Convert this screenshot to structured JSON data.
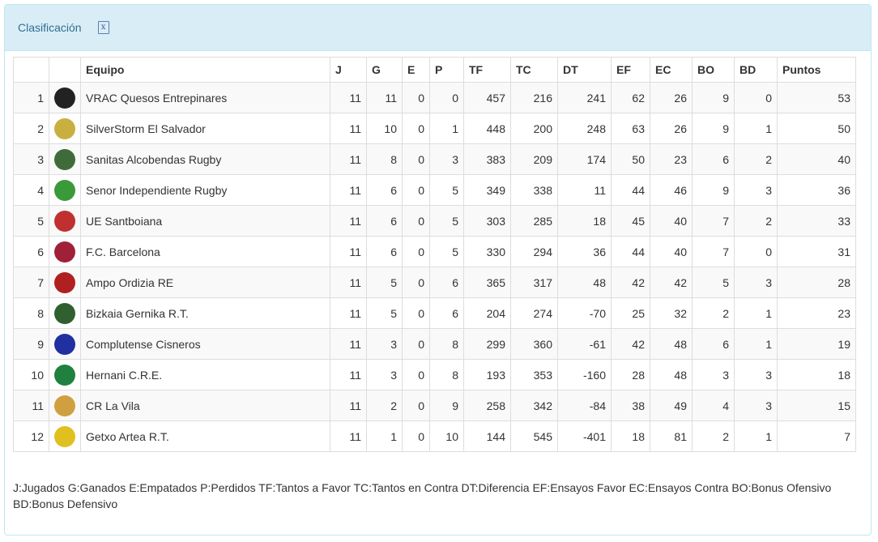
{
  "panel": {
    "title": "Clasificación",
    "export_icon": "excel-file-icon"
  },
  "columns": [
    "",
    "",
    "Equipo",
    "J",
    "G",
    "E",
    "P",
    "TF",
    "TC",
    "DT",
    "EF",
    "EC",
    "BO",
    "BD",
    "Puntos"
  ],
  "rows": [
    {
      "pos": "1",
      "team": "VRAC Quesos Entrepinares",
      "logo_color": "#222222",
      "vals": [
        "11",
        "11",
        "0",
        "0",
        "457",
        "216",
        "241",
        "62",
        "26",
        "9",
        "0",
        "53"
      ]
    },
    {
      "pos": "2",
      "team": "SilverStorm El Salvador",
      "logo_color": "#c8b040",
      "vals": [
        "11",
        "10",
        "0",
        "1",
        "448",
        "200",
        "248",
        "63",
        "26",
        "9",
        "1",
        "50"
      ]
    },
    {
      "pos": "3",
      "team": "Sanitas Alcobendas Rugby",
      "logo_color": "#3f6b3a",
      "vals": [
        "11",
        "8",
        "0",
        "3",
        "383",
        "209",
        "174",
        "50",
        "23",
        "6",
        "2",
        "40"
      ]
    },
    {
      "pos": "4",
      "team": "Senor Independiente Rugby",
      "logo_color": "#3a9a3a",
      "vals": [
        "11",
        "6",
        "0",
        "5",
        "349",
        "338",
        "11",
        "44",
        "46",
        "9",
        "3",
        "36"
      ]
    },
    {
      "pos": "5",
      "team": "UE Santboiana",
      "logo_color": "#c03030",
      "vals": [
        "11",
        "6",
        "0",
        "5",
        "303",
        "285",
        "18",
        "45",
        "40",
        "7",
        "2",
        "33"
      ]
    },
    {
      "pos": "6",
      "team": "F.C. Barcelona",
      "logo_color": "#a0203a",
      "vals": [
        "11",
        "6",
        "0",
        "5",
        "330",
        "294",
        "36",
        "44",
        "40",
        "7",
        "0",
        "31"
      ]
    },
    {
      "pos": "7",
      "team": "Ampo Ordizia RE",
      "logo_color": "#b02020",
      "vals": [
        "11",
        "5",
        "0",
        "6",
        "365",
        "317",
        "48",
        "42",
        "42",
        "5",
        "3",
        "28"
      ]
    },
    {
      "pos": "8",
      "team": "Bizkaia Gernika R.T.",
      "logo_color": "#306030",
      "vals": [
        "11",
        "5",
        "0",
        "6",
        "204",
        "274",
        "-70",
        "25",
        "32",
        "2",
        "1",
        "23"
      ]
    },
    {
      "pos": "9",
      "team": "Complutense Cisneros",
      "logo_color": "#2030a0",
      "vals": [
        "11",
        "3",
        "0",
        "8",
        "299",
        "360",
        "-61",
        "42",
        "48",
        "6",
        "1",
        "19"
      ]
    },
    {
      "pos": "10",
      "team": "Hernani C.R.E.",
      "logo_color": "#208040",
      "vals": [
        "11",
        "3",
        "0",
        "8",
        "193",
        "353",
        "-160",
        "28",
        "48",
        "3",
        "3",
        "18"
      ]
    },
    {
      "pos": "11",
      "team": "CR La Vila",
      "logo_color": "#d0a040",
      "vals": [
        "11",
        "2",
        "0",
        "9",
        "258",
        "342",
        "-84",
        "38",
        "49",
        "4",
        "3",
        "15"
      ]
    },
    {
      "pos": "12",
      "team": "Getxo Artea R.T.",
      "logo_color": "#e0c020",
      "vals": [
        "11",
        "1",
        "0",
        "10",
        "144",
        "545",
        "-401",
        "18",
        "81",
        "2",
        "1",
        "7"
      ]
    }
  ],
  "legend": "J:Jugados G:Ganados E:Empatados P:Perdidos TF:Tantos a Favor TC:Tantos en Contra DT:Diferencia EF:Ensayos Favor EC:Ensayos Contra BO:Bonus Ofensivo BD:Bonus Defensivo"
}
